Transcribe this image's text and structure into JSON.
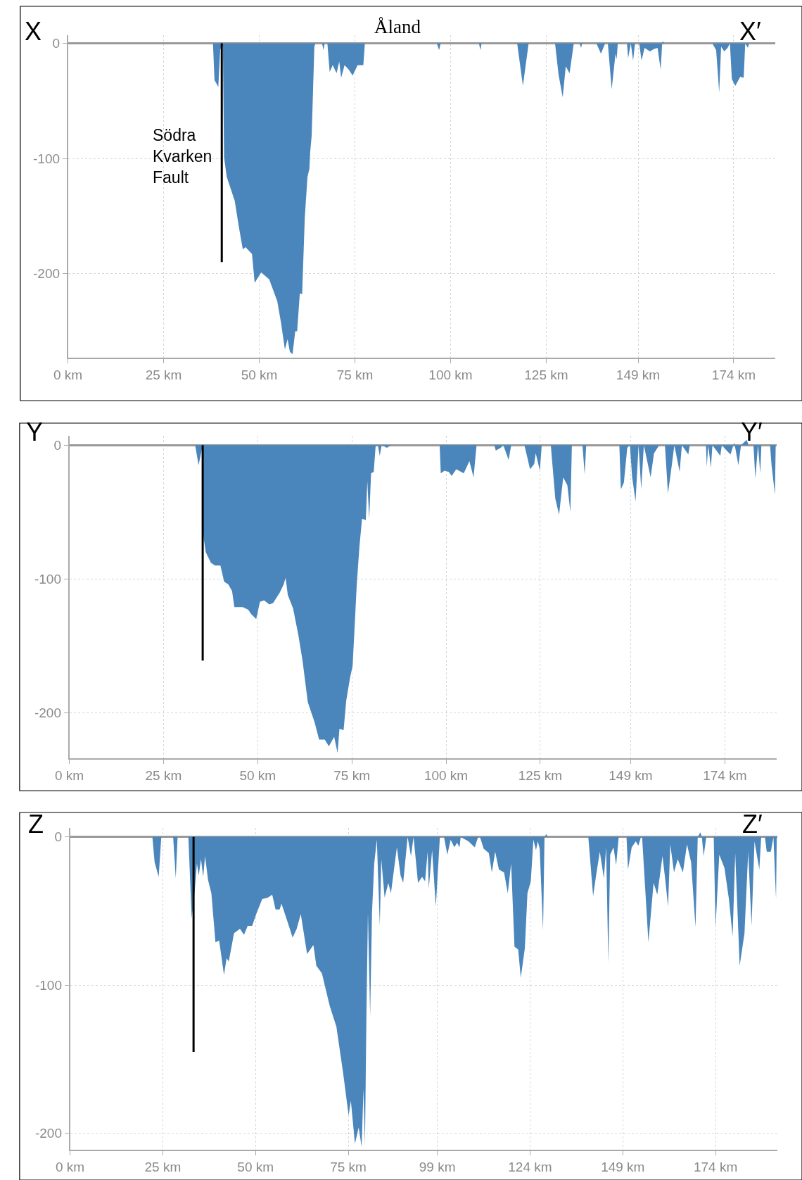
{
  "chart_data": [
    {
      "type": "area",
      "annotations": [
        "X",
        "X′",
        {
          "text": "Åland",
          "x": 86.1,
          "y": 0
        },
        {
          "text": "Södra Kvarken Fault",
          "x": 40.2,
          "y": -98
        }
      ],
      "xlim": [
        0,
        184.8
      ],
      "ylim": [
        -273,
        7
      ],
      "xticks": [
        {
          "value": 0,
          "label": "0 km"
        },
        {
          "value": 25,
          "label": "25 km"
        },
        {
          "value": 50,
          "label": "50 km"
        },
        {
          "value": 75,
          "label": "75 km"
        },
        {
          "value": 100,
          "label": "100 km"
        },
        {
          "value": 125,
          "label": "125 km"
        },
        {
          "value": 149,
          "label": "149 km"
        },
        {
          "value": 174,
          "label": "174 km"
        }
      ],
      "yticks": [
        0,
        -100,
        -200
      ],
      "grid": true,
      "series": [
        {
          "type": "area",
          "color": "#4a86bb",
          "x": [
            0,
            37.9,
            38.3,
            39.3,
            39.8,
            40.5,
            40.8,
            41.5,
            43.6,
            44.6,
            45.7,
            46.4,
            48.1,
            48.8,
            50.5,
            52.6,
            54.7,
            55.7,
            56.7,
            57.4,
            58.0,
            58.7,
            59.4,
            59.9,
            60.6,
            61.2,
            61.9,
            62.6,
            63.1,
            63.3,
            63.7,
            64.4,
            64.7,
            66.4,
            66.8,
            67.1,
            67.8,
            68.4,
            69.2,
            70.2,
            70.9,
            71.4,
            72.3,
            73.4,
            74.4,
            75.7,
            77.2,
            77.6,
            96.4,
            97.0,
            97.4,
            107.4,
            107.8,
            108.1,
            117.4,
            118.9,
            120.4,
            127.3,
            128.2,
            129.3,
            130.1,
            131.1,
            132.2,
            133.7,
            134.1,
            134.4,
            138.1,
            139.3,
            140.4,
            141.1,
            142.1,
            143.1,
            143.4,
            143.7,
            146.1,
            146.4,
            147.1,
            147.7,
            148.2,
            149.3,
            149.9,
            150.7,
            152.1,
            153.1,
            154.1,
            154.9,
            155.3,
            155.5,
            155.8,
            168.4,
            169.4,
            170.2,
            170.7,
            171.5,
            172.4,
            173.0,
            173.5,
            174.4,
            175.7,
            176.6,
            177.0,
            177.7,
            178.0,
            184.5
          ],
          "values": [
            0,
            0,
            -32,
            -38,
            -5,
            -3,
            -99,
            -116,
            -137,
            -158,
            -179,
            -177,
            -183,
            -208,
            -199,
            -205,
            -224,
            -243,
            -266,
            -257,
            -268,
            -270,
            -250,
            -250,
            -217,
            -218,
            -151,
            -116,
            -109,
            -95,
            -80,
            -3,
            0,
            0,
            -6,
            0,
            0,
            -25,
            -19,
            -26,
            -16,
            -30,
            -19,
            -23,
            -28,
            -19,
            -19,
            0,
            0,
            -6,
            0,
            0,
            -6,
            0,
            0,
            -37,
            0,
            0,
            -27,
            -47,
            -20,
            -26,
            0,
            0,
            -4,
            0,
            0,
            -9,
            0,
            0,
            -40,
            -9,
            -14,
            0,
            0,
            -13,
            0,
            -15,
            0,
            0,
            -15,
            -4,
            -7,
            -5,
            -4,
            -23,
            0,
            2,
            0,
            0,
            -6,
            -43,
            -3,
            -7,
            -4,
            0,
            -31,
            -37,
            -29,
            -30,
            0,
            -4,
            0,
            0
          ]
        },
        {
          "type": "line",
          "color": "#000000",
          "x": [
            40.2,
            40.2
          ],
          "values": [
            0,
            -190
          ]
        }
      ]
    },
    {
      "type": "area",
      "annotations": [
        "Y",
        "Y′"
      ],
      "xlim": [
        0,
        187.7
      ],
      "ylim": [
        -234,
        7
      ],
      "xticks": [
        {
          "value": 0,
          "label": "0 km"
        },
        {
          "value": 25,
          "label": "25 km"
        },
        {
          "value": 50,
          "label": "50 km"
        },
        {
          "value": 75,
          "label": "75 km"
        },
        {
          "value": 100,
          "label": "100 km"
        },
        {
          "value": 125,
          "label": "125 km"
        },
        {
          "value": 149,
          "label": "149 km"
        },
        {
          "value": 174,
          "label": "174 km"
        }
      ],
      "yticks": [
        0,
        -100,
        -200
      ],
      "grid": true,
      "series": [
        {
          "type": "area",
          "color": "#4a86bb",
          "x": [
            0,
            33.4,
            34.3,
            35.2,
            35.6,
            36.2,
            37.6,
            38.7,
            40.1,
            41.1,
            42.2,
            43.2,
            43.8,
            46.0,
            47.5,
            48.2,
            49.6,
            50.6,
            51.7,
            53.1,
            54.1,
            55.9,
            56.9,
            57.4,
            58.0,
            59.4,
            60.8,
            61.9,
            63.3,
            65.1,
            66.3,
            67.8,
            68.9,
            70.3,
            71.2,
            71.7,
            72.8,
            73.5,
            74.5,
            75.2,
            76.3,
            77.0,
            77.7,
            78.7,
            79.1,
            79.6,
            80.1,
            80.8,
            81.3,
            81.9,
            82.4,
            82.9,
            84.3,
            85.4,
            98.3,
            98.6,
            99.6,
            100.7,
            101.5,
            102.7,
            104.7,
            106.2,
            107.3,
            108.1,
            112.8,
            113.2,
            114.5,
            115.2,
            116.6,
            117.3,
            120.8,
            122.3,
            123.4,
            123.8,
            124.9,
            125.4,
            127.8,
            129.0,
            130.0,
            131.1,
            132.2,
            133.0,
            133.4,
            136.2,
            136.8,
            137.2,
            146.0,
            146.4,
            147.2,
            148.1,
            148.8,
            149.4,
            150.3,
            151.1,
            151.8,
            152.5,
            154.3,
            155.2,
            156.6,
            158.1,
            158.9,
            159.6,
            160.6,
            162.0,
            162.6,
            164.3,
            164.7,
            169.0,
            169.2,
            169.6,
            170.3,
            170.7,
            172.8,
            173.2,
            174.5,
            175.5,
            176.5,
            177.6,
            178.3,
            179.8,
            180.3,
            181.6,
            182.1,
            182.8,
            183.4,
            183.7,
            186.0,
            186.4,
            187.3,
            187.5
          ],
          "values": [
            0,
            0,
            -15,
            -3,
            -68,
            -80,
            -88,
            -90,
            -90,
            -102,
            -104,
            -109,
            -121,
            -121,
            -123,
            -126,
            -130,
            -117,
            -116,
            -119,
            -118,
            -110,
            -104,
            -99,
            -112,
            -122,
            -142,
            -161,
            -192,
            -207,
            -220,
            -220,
            -225,
            -218,
            -230,
            -212,
            -213,
            -191,
            -174,
            -165,
            -104,
            -76,
            -55,
            -56,
            -27,
            -55,
            -21,
            -20,
            -1,
            0,
            -8,
            0,
            -2,
            0,
            0,
            -21,
            -19,
            -20,
            -23,
            -18,
            -21,
            -12,
            -24,
            0,
            0,
            -4,
            -2,
            0,
            -11,
            0,
            0,
            -18,
            -14,
            -6,
            -19,
            0,
            0,
            -40,
            -52,
            -24,
            -30,
            -50,
            0,
            0,
            -22,
            0,
            0,
            -33,
            -28,
            -2,
            0,
            -24,
            -42,
            0,
            -33,
            0,
            -24,
            -6,
            0,
            0,
            -36,
            -22,
            0,
            -20,
            0,
            -7,
            0,
            0,
            -16,
            0,
            -17,
            0,
            -8,
            0,
            -4,
            -7,
            2,
            -15,
            0,
            4,
            0,
            0,
            -25,
            0,
            -21,
            0,
            0,
            -15,
            -37,
            0
          ]
        },
        {
          "type": "line",
          "color": "#000000",
          "x": [
            35.4,
            35.4
          ],
          "values": [
            0,
            -161
          ]
        }
      ]
    },
    {
      "type": "area",
      "annotations": [
        "Z",
        "Z′"
      ],
      "xlim": [
        0,
        190.6
      ],
      "ylim": [
        -211,
        6
      ],
      "xticks": [
        {
          "value": 0,
          "label": "0 km"
        },
        {
          "value": 25,
          "label": "25 km"
        },
        {
          "value": 50,
          "label": "50 km"
        },
        {
          "value": 75,
          "label": "75 km"
        },
        {
          "value": 99,
          "label": "99 km"
        },
        {
          "value": 124,
          "label": "124 km"
        },
        {
          "value": 149,
          "label": "149 km"
        },
        {
          "value": 174,
          "label": "174 km"
        }
      ],
      "yticks": [
        0,
        -100,
        -200
      ],
      "grid": true,
      "series": [
        {
          "type": "area",
          "color": "#4a86bb",
          "x": [
            0,
            22.2,
            22.8,
            23.9,
            24.6,
            27.8,
            28.5,
            29.0,
            31.9,
            32.8,
            33.6,
            34.2,
            34.7,
            35.3,
            35.9,
            36.4,
            37.2,
            38.1,
            39.2,
            40.2,
            41.5,
            42.2,
            42.8,
            44.2,
            45.8,
            46.9,
            47.9,
            49.1,
            50.2,
            51.8,
            53.3,
            54.5,
            55.4,
            56.5,
            57.0,
            58.6,
            60.0,
            61.1,
            62.2,
            63.9,
            65.6,
            66.4,
            67.9,
            70.0,
            71.8,
            73.6,
            75.1,
            75.7,
            76.8,
            77.8,
            78.6,
            79.1,
            79.5,
            79.9,
            80.3,
            80.9,
            81.4,
            82.0,
            82.7,
            83.5,
            83.9,
            84.8,
            85.8,
            86.5,
            88.1,
            89.1,
            89.8,
            91.0,
            91.9,
            92.6,
            93.8,
            94.9,
            95.7,
            96.4,
            96.7,
            97.6,
            98.6,
            99.7,
            100.8,
            101.7,
            102.6,
            103.6,
            104.3,
            105.0,
            105.3,
            107.4,
            109.1,
            110.0,
            110.5,
            111.5,
            112.9,
            113.7,
            114.6,
            115.6,
            117.0,
            118.0,
            118.9,
            119.8,
            120.8,
            121.5,
            122.6,
            123.3,
            124.2,
            124.9,
            125.6,
            126.1,
            126.6,
            127.5,
            127.9,
            128.4,
            128.7,
            139.7,
            141.0,
            141.8,
            142.8,
            143.9,
            144.5,
            145.1,
            145.6,
            146.5,
            147.2,
            147.9,
            150.0,
            150.4,
            151.4,
            152.5,
            153.2,
            153.9,
            154.2,
            155.9,
            157.3,
            158.3,
            159.7,
            160.4,
            161.2,
            161.8,
            162.8,
            163.8,
            165.2,
            166.3,
            167.4,
            168.6,
            169.2,
            169.9,
            170.3,
            170.8,
            171.5,
            173.5,
            174.0,
            175.0,
            176.4,
            177.6,
            178.6,
            179.3,
            180.5,
            181.8,
            182.8,
            183.7,
            184.5,
            185.8,
            186.3,
            187.3,
            187.8,
            188.9,
            189.6,
            190.3,
            190.5
          ],
          "values": [
            0,
            0,
            -17,
            -27,
            0,
            0,
            -28,
            0,
            0,
            -55,
            -37,
            -18,
            -26,
            -15,
            -27,
            -13,
            -29,
            -38,
            -71,
            -70,
            -93,
            -82,
            -84,
            -65,
            -62,
            -66,
            -60,
            -60,
            -52,
            -42,
            -41,
            -39,
            -49,
            -49,
            -45,
            -57,
            -68,
            -62,
            -52,
            -79,
            -73,
            -87,
            -92,
            -114,
            -128,
            -159,
            -188,
            -178,
            -207,
            -196,
            -209,
            -170,
            -208,
            -119,
            -51,
            -121,
            -51,
            -18,
            -2,
            -60,
            -15,
            -41,
            -31,
            -38,
            -7,
            -26,
            -31,
            0,
            -13,
            0,
            -31,
            -27,
            -30,
            -10,
            -35,
            -9,
            -47,
            0,
            0,
            -12,
            -2,
            -7,
            -4,
            -7,
            0,
            -3,
            -7,
            0,
            0,
            -8,
            -11,
            -24,
            -10,
            -22,
            -24,
            -38,
            -18,
            -74,
            -76,
            -95,
            -75,
            -38,
            -30,
            -2,
            -9,
            -3,
            -8,
            -63,
            0,
            2,
            0,
            0,
            -40,
            -26,
            -10,
            -28,
            -7,
            -85,
            -12,
            -7,
            -19,
            0,
            0,
            -22,
            -7,
            -3,
            -6,
            0,
            0,
            -71,
            -31,
            -39,
            -13,
            -28,
            -47,
            -5,
            -24,
            -15,
            -24,
            -5,
            -17,
            -61,
            0,
            3,
            0,
            -13,
            0,
            0,
            -61,
            -12,
            -21,
            -42,
            -67,
            -11,
            -87,
            -65,
            -10,
            -60,
            -3,
            -22,
            0,
            0,
            -10,
            -10,
            0,
            -42,
            0
          ]
        },
        {
          "type": "line",
          "color": "#000000",
          "x": [
            33.3,
            33.3
          ],
          "values": [
            0,
            -145
          ]
        }
      ]
    }
  ]
}
